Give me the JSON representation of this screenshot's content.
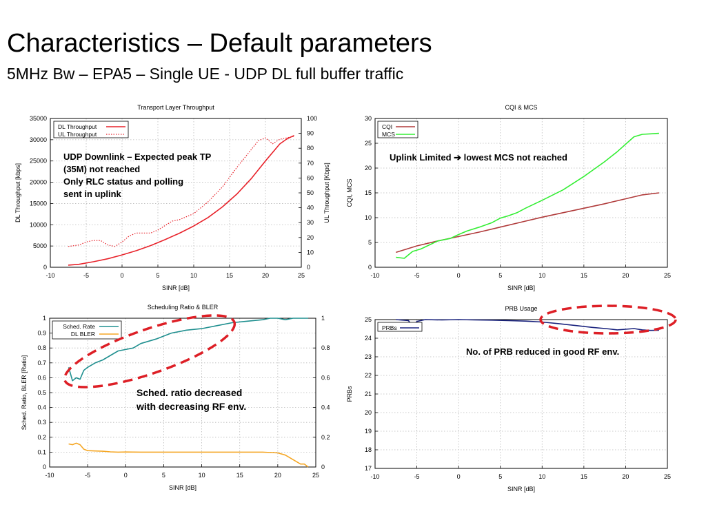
{
  "slide": {
    "title": "Characteristics – Default parameters",
    "subtitle": "5MHz Bw – EPA5 – Single UE - UDP DL full buffer traffic"
  },
  "chart_data": [
    {
      "type": "line",
      "title": "Transport Layer Throughput",
      "xlabel": "SINR [dB]",
      "ylabel": "DL Throughput [kbps]",
      "y2label": "UL Throughput [Kbps]",
      "xlim": [
        -10,
        25
      ],
      "ylim": [
        0,
        35000
      ],
      "y2lim": [
        0,
        100
      ],
      "xticks": [
        "-10",
        "-5",
        "0",
        "5",
        "10",
        "15",
        "20",
        "25"
      ],
      "yticks": [
        "0",
        "5000",
        "10000",
        "15000",
        "20000",
        "25000",
        "30000",
        "35000"
      ],
      "y2ticks": [
        "0",
        "10",
        "20",
        "30",
        "40",
        "50",
        "60",
        "70",
        "80",
        "90",
        "100"
      ],
      "grid": true,
      "legend": "top-left",
      "series": [
        {
          "name": "DL Throughput",
          "color": "#e8222a",
          "style": "solid",
          "axis": "y",
          "x": [
            -7.5,
            -6,
            -4,
            -2,
            0,
            2,
            4,
            6,
            8,
            10,
            12,
            14,
            16,
            18,
            20,
            22,
            23,
            24
          ],
          "y": [
            500,
            700,
            1300,
            2000,
            2900,
            3900,
            5100,
            6500,
            8000,
            9700,
            11700,
            14200,
            17200,
            20800,
            25000,
            29000,
            30200,
            31000
          ]
        },
        {
          "name": "UL Throughput",
          "color": "#e8222a",
          "style": "dotted",
          "axis": "y2",
          "x": [
            -7.5,
            -6,
            -5,
            -4,
            -3,
            -2,
            -1,
            0,
            1,
            2,
            3,
            4,
            5,
            6,
            7,
            8,
            10,
            12,
            14,
            16,
            18,
            19,
            20,
            21,
            22,
            23,
            24
          ],
          "y": [
            14,
            15,
            17,
            18,
            18,
            15,
            14,
            17,
            21,
            23,
            23,
            23,
            25,
            28,
            31,
            32,
            36,
            44,
            54,
            67,
            79,
            85,
            87,
            83,
            86,
            87,
            88
          ]
        }
      ],
      "annotations": [
        "UDP Downlink – Expected peak TP",
        "(35M) not reached",
        "Only RLC status and polling",
        "sent in uplink"
      ]
    },
    {
      "type": "line",
      "title": "CQI & MCS",
      "xlabel": "SINR [dB]",
      "ylabel": "CQI, MCS",
      "xlim": [
        -10,
        25
      ],
      "ylim": [
        0,
        30
      ],
      "xticks": [
        "-10",
        "-5",
        "0",
        "5",
        "10",
        "15",
        "20",
        "25"
      ],
      "yticks": [
        "0",
        "5",
        "10",
        "15",
        "20",
        "25",
        "30"
      ],
      "grid": true,
      "legend": "top-left",
      "series": [
        {
          "name": "CQI",
          "color": "#b03a3a",
          "x": [
            -7.5,
            -5,
            -2.5,
            0,
            2.5,
            5,
            7.5,
            10,
            12.5,
            15,
            17.5,
            20,
            22,
            24
          ],
          "y": [
            3.0,
            4.3,
            5.3,
            6.2,
            7.1,
            8.1,
            9.1,
            10.1,
            11.0,
            11.9,
            12.8,
            13.8,
            14.6,
            15.0
          ]
        },
        {
          "name": "MCS",
          "color": "#33ee33",
          "x": [
            -7.5,
            -6.5,
            -5.5,
            -4.5,
            -3.5,
            -2.5,
            -1,
            0,
            1,
            2.5,
            4,
            5,
            6,
            7,
            8,
            10,
            12.5,
            15,
            17.5,
            19,
            20,
            21,
            22,
            23,
            24
          ],
          "y": [
            2.0,
            1.8,
            3.2,
            3.7,
            4.5,
            5.3,
            5.8,
            6.6,
            7.3,
            8.1,
            9.0,
            9.9,
            10.4,
            11.0,
            11.9,
            13.5,
            15.6,
            18.3,
            21.3,
            23.3,
            24.8,
            26.3,
            26.8,
            26.9,
            27.0
          ]
        }
      ],
      "annotations": [
        "Uplink Limited ➔ lowest MCS not reached"
      ]
    },
    {
      "type": "line",
      "title": "Scheduling Ratio & BLER",
      "xlabel": "SINR [dB]",
      "ylabel": "Sched. Ratio, BLER [Ratio]",
      "xlim": [
        -10,
        25
      ],
      "ylim": [
        0,
        1
      ],
      "y2lim": [
        0,
        1
      ],
      "xticks": [
        "-10",
        "-5",
        "0",
        "5",
        "10",
        "15",
        "20",
        "25"
      ],
      "yticks": [
        "0",
        "0.1",
        "0.2",
        "0.3",
        "0.4",
        "0.5",
        "0.6",
        "0.7",
        "0.8",
        "0.9",
        "1"
      ],
      "y2ticks": [
        "0",
        "0.2",
        "0.4",
        "0.6",
        "0.8",
        "1"
      ],
      "grid": true,
      "legend": "top-left",
      "series": [
        {
          "name": "Sched. Rate",
          "color": "#1f8f8f",
          "x": [
            -7.5,
            -7,
            -6.5,
            -6,
            -5.5,
            -5,
            -4,
            -3,
            -2,
            -1,
            0,
            1,
            2,
            4,
            6,
            8,
            10,
            12,
            14,
            16,
            18,
            19,
            20,
            21,
            22,
            24
          ],
          "y": [
            0.67,
            0.58,
            0.6,
            0.59,
            0.65,
            0.67,
            0.7,
            0.72,
            0.75,
            0.78,
            0.79,
            0.8,
            0.83,
            0.86,
            0.9,
            0.92,
            0.93,
            0.95,
            0.97,
            0.98,
            0.99,
            1.0,
            1.0,
            0.99,
            1.0,
            1.0
          ]
        },
        {
          "name": "DL BLER",
          "color": "#f5a623",
          "x": [
            -7.5,
            -7,
            -6.5,
            -6,
            -5.5,
            -5,
            -4,
            -3,
            -2,
            -1,
            0,
            2,
            4,
            6,
            8,
            10,
            12,
            14,
            16,
            18,
            20,
            21,
            22,
            23,
            23.5,
            24
          ],
          "y": [
            0.155,
            0.15,
            0.16,
            0.15,
            0.12,
            0.11,
            0.108,
            0.106,
            0.102,
            0.1,
            0.101,
            0.1,
            0.1,
            0.1,
            0.1,
            0.1,
            0.1,
            0.1,
            0.1,
            0.1,
            0.095,
            0.08,
            0.05,
            0.02,
            0.02,
            0.0
          ]
        }
      ],
      "annotations": [
        "Sched. ratio decreased",
        "with decreasing RF env."
      ]
    },
    {
      "type": "line",
      "title": "PRB Usage",
      "xlabel": "SINR [dB]",
      "ylabel": "PRBs",
      "xlim": [
        -10,
        25
      ],
      "ylim": [
        17,
        25
      ],
      "xticks": [
        "-10",
        "-5",
        "0",
        "5",
        "10",
        "15",
        "20",
        "25"
      ],
      "yticks": [
        "17",
        "18",
        "19",
        "20",
        "21",
        "22",
        "23",
        "24",
        "25"
      ],
      "grid": true,
      "legend": "top-left",
      "series": [
        {
          "name": "PRBs",
          "color": "#1a237e",
          "x": [
            -7.5,
            -6,
            -5.5,
            -5,
            -4.5,
            -4,
            -2,
            0,
            2,
            4,
            6,
            8,
            10,
            12,
            14,
            16,
            18,
            19,
            20,
            21,
            22,
            23,
            24
          ],
          "y": [
            25.0,
            24.95,
            24.6,
            24.9,
            24.95,
            25.0,
            24.98,
            25.0,
            24.98,
            24.97,
            24.95,
            24.92,
            24.87,
            24.78,
            24.68,
            24.58,
            24.5,
            24.45,
            24.48,
            24.52,
            24.45,
            24.42,
            24.43
          ]
        }
      ],
      "annotations": [
        "No. of PRB reduced in good RF env."
      ]
    }
  ]
}
